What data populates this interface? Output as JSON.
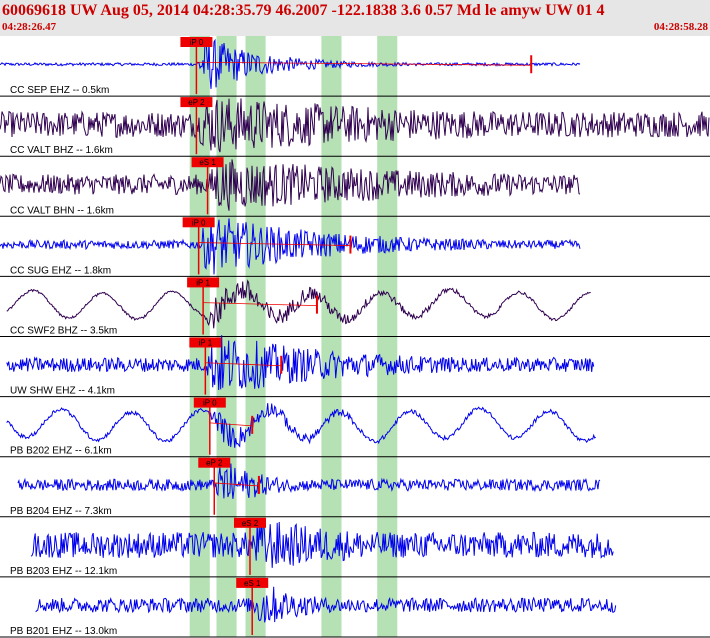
{
  "header": {
    "title": "60069618 UW Aug 05, 2014 04:28:35.79   46.2007 -122.1838  3.6 0.57 Md le amyw UW 01   4",
    "start_time": "04:28:26.47",
    "end_time": "04:28:58.28"
  },
  "colors": {
    "trace_blue": "#0000ee",
    "trace_purple": "#300050",
    "pick_red": "#ee0000",
    "window_green": "#a8dca8",
    "header_bg": "#e6e6e6",
    "title_red": "#cc0000"
  },
  "chart_data": {
    "type": "line",
    "x_range_seconds": [
      0,
      31.81
    ],
    "green_windows": [
      {
        "from": 8.5,
        "to": 9.4
      },
      {
        "from": 9.7,
        "to": 10.6
      },
      {
        "from": 11.0,
        "to": 11.9
      },
      {
        "from": 14.4,
        "to": 15.3
      },
      {
        "from": 16.9,
        "to": 17.8
      }
    ],
    "traces": [
      {
        "label": "CC SEP EHZ -- 0.5km",
        "color": "blue",
        "pick": "iP 0",
        "pick_time": 8.8,
        "s_time": 23.8,
        "amp": 1.0,
        "noise": 0.05,
        "decay": 2.5,
        "signal_dur": 14,
        "data_start": 0.0,
        "data_end": 26.0,
        "lowfreq": 0
      },
      {
        "label": "CC VALT BHZ -- 1.6km",
        "color": "purple",
        "pick": "eP 2",
        "pick_time": 8.8,
        "s_time": null,
        "amp": 0.8,
        "noise": 0.45,
        "decay": 9,
        "signal_dur": 20,
        "data_start": 0.0,
        "data_end": 31.8,
        "lowfreq": 0
      },
      {
        "label": "CC VALT BHN -- 1.6km",
        "color": "purple",
        "pick": "eS 1",
        "pick_time": 9.3,
        "s_time": null,
        "amp": 0.75,
        "noise": 0.35,
        "decay": 9,
        "signal_dur": 20,
        "data_start": 0.0,
        "data_end": 26.0,
        "lowfreq": 0
      },
      {
        "label": "CC SUG EHZ -- 1.8km",
        "color": "blue",
        "pick": "iP 0",
        "pick_time": 8.9,
        "s_time": 15.7,
        "amp": 1.0,
        "noise": 0.15,
        "decay": 5,
        "signal_dur": 16,
        "data_start": 0.0,
        "data_end": 26.0,
        "lowfreq": 0
      },
      {
        "label": "CC SWF2 BHZ -- 3.5km",
        "color": "purple",
        "pick": "iP 1",
        "pick_time": 9.1,
        "s_time": 14.2,
        "amp": 0.75,
        "noise": 0.06,
        "decay": 5,
        "signal_dur": 14,
        "data_start": 0.3,
        "data_end": 26.5,
        "lowfreq": 0.45
      },
      {
        "label": "UW SHW EHZ -- 4.1km",
        "color": "blue",
        "pick": "iP 1",
        "pick_time": 9.2,
        "s_time": 12.6,
        "amp": 1.0,
        "noise": 0.25,
        "decay": 5,
        "signal_dur": 14,
        "data_start": 0.3,
        "data_end": 26.6,
        "lowfreq": 0
      },
      {
        "label": "PB B202 EHZ -- 6.1km",
        "color": "blue",
        "pick": "iP 0",
        "pick_time": 9.4,
        "s_time": 11.3,
        "amp": 0.65,
        "noise": 0.1,
        "decay": 3,
        "signal_dur": 6,
        "data_start": 0.3,
        "data_end": 26.7,
        "lowfreq": 0.5
      },
      {
        "label": "PB B204 EHZ -- 7.3km",
        "color": "blue",
        "pick": "eP 2",
        "pick_time": 9.6,
        "s_time": 11.6,
        "amp": 0.8,
        "noise": 0.2,
        "decay": 1.5,
        "signal_dur": 5,
        "data_start": 0.8,
        "data_end": 26.9,
        "lowfreq": 0
      },
      {
        "label": "PB B203 EHZ -- 12.1km",
        "color": "blue",
        "pick": "eS 2",
        "pick_time": 11.2,
        "s_time": null,
        "amp": 0.7,
        "noise": 0.45,
        "decay": 4,
        "signal_dur": 14,
        "data_start": 1.4,
        "data_end": 27.5,
        "lowfreq": 0
      },
      {
        "label": "PB B201 EHZ -- 13.0km",
        "color": "blue",
        "pick": "eS 1",
        "pick_time": 11.3,
        "s_time": null,
        "amp": 0.75,
        "noise": 0.25,
        "decay": 1.5,
        "signal_dur": 6,
        "data_start": 1.6,
        "data_end": 27.6,
        "lowfreq": 0
      }
    ]
  }
}
